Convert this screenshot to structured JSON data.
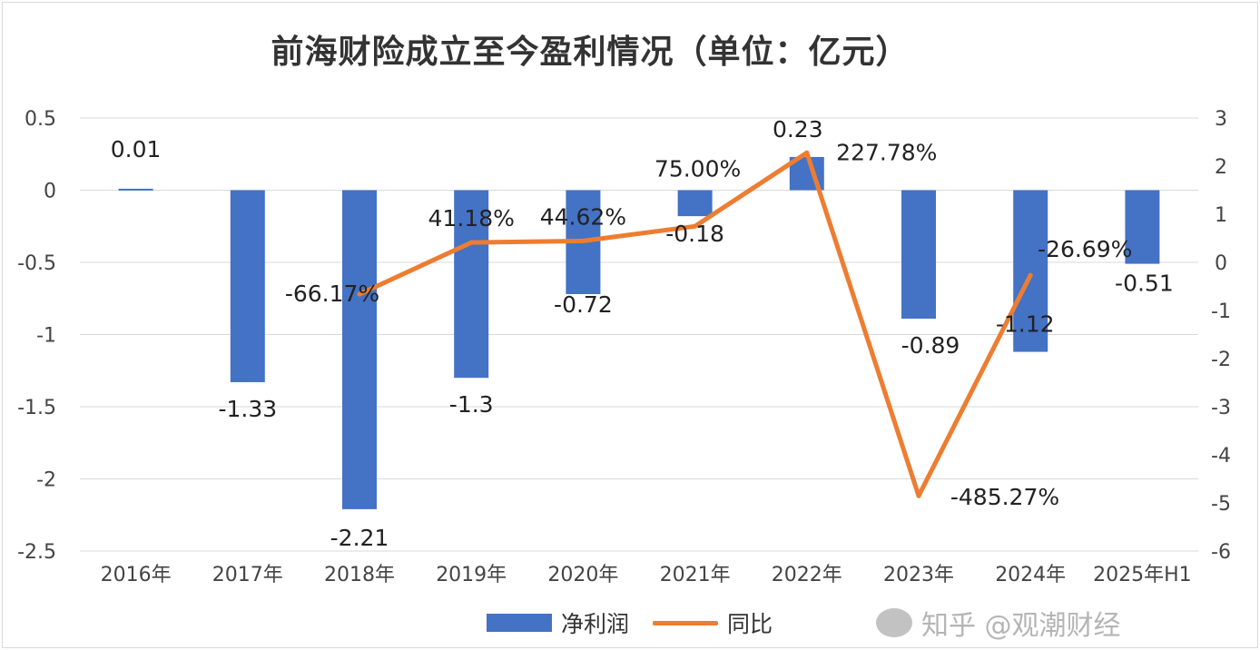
{
  "chart_data": {
    "type": "bar+line",
    "title": "前海财险成立至今盈利情况（单位：亿元）",
    "categories": [
      "2016年",
      "2017年",
      "2018年",
      "2019年",
      "2020年",
      "2021年",
      "2022年",
      "2023年",
      "2024年",
      "2025年H1"
    ],
    "series": [
      {
        "name": "净利润",
        "type": "bar",
        "axis": "left",
        "color": "#4472c4",
        "values": [
          0.01,
          -1.33,
          -2.21,
          -1.3,
          -0.72,
          -0.18,
          0.23,
          -0.89,
          -1.12,
          -0.51
        ],
        "labels": [
          "0.01",
          "-1.33",
          "-2.21",
          "-1.3",
          "-0.72",
          "-0.18",
          "0.23",
          "-0.89",
          "-1.12",
          "-0.51"
        ]
      },
      {
        "name": "同比",
        "type": "line",
        "axis": "right",
        "color": "#ed7d31",
        "values": [
          null,
          null,
          -0.6617,
          0.4118,
          0.4462,
          0.75,
          2.2778,
          -4.8527,
          -0.2669,
          null
        ],
        "labels": [
          "",
          "",
          "-66.17%",
          "41.18%",
          "44.62%",
          "75.00%",
          "227.78%",
          "-485.27%",
          "-26.69%",
          ""
        ]
      }
    ],
    "y_left": {
      "range": [
        -2.5,
        0.5
      ],
      "ticks": [
        "0.5",
        "0",
        "-0.5",
        "-1",
        "-1.5",
        "-2",
        "-2.5"
      ]
    },
    "y_right": {
      "range": [
        -6,
        3
      ],
      "ticks": [
        "3",
        "2",
        "1",
        "0",
        "-1",
        "-2",
        "-3",
        "-4",
        "-5",
        "-6"
      ]
    },
    "grid": true,
    "legend": "bottom"
  },
  "watermark": "知乎 @观潮财经"
}
